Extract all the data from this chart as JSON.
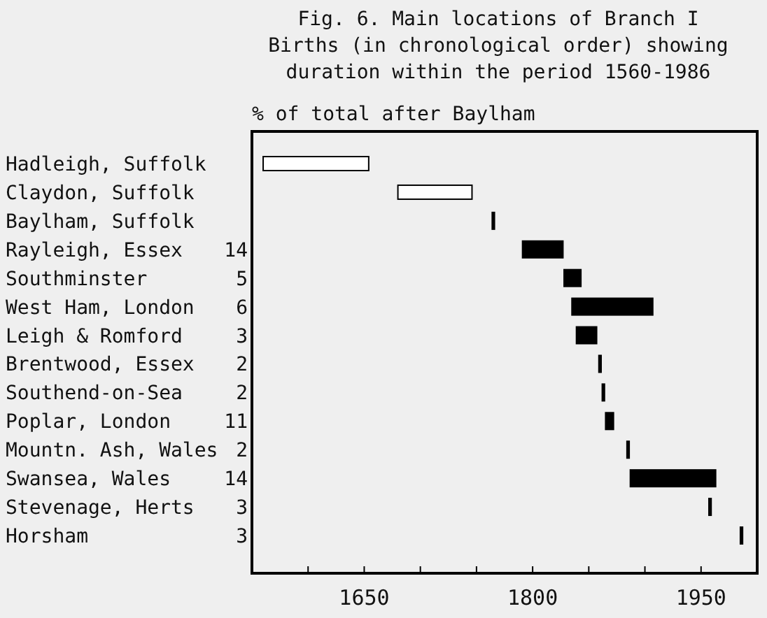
{
  "chart_data": {
    "type": "bar",
    "orientation": "horizontal",
    "title": "Fig. 6. Main locations of Branch I\nBirths (in chronological order) showing\nduration within the period 1560-1986",
    "categories": [
      "Hadleigh, Suffolk",
      "Claydon, Suffolk",
      "Baylham, Suffolk",
      "Rayleigh, Essex",
      "Southminster",
      "West Ham, London",
      "Leigh & Romford",
      "Brentwood, Essex",
      "Southend-on-Sea",
      "Poplar, London",
      "Mountn. Ash, Wales",
      "Swansea, Wales",
      "Stevenage, Herts",
      "Horsham"
    ],
    "base": [
      1560,
      1680,
      1764,
      1791,
      1828,
      1835,
      1839,
      1859,
      1862,
      1865,
      1884,
      1887,
      1957,
      1985
    ],
    "values": [
      94,
      66,
      2,
      36,
      15,
      72,
      18,
      2,
      2,
      7,
      2,
      76,
      2,
      2
    ],
    "colors": [
      "#ffffff",
      "#ffffff",
      "#000000",
      "#000000",
      "#000000",
      "#000000",
      "#000000",
      "#000000",
      "#000000",
      "#000000",
      "#000000",
      "#000000",
      "#000000",
      "#000000"
    ],
    "xlim": [
      1550,
      2000
    ],
    "xticks": [
      {
        "value": 1600,
        "label": null
      },
      1650,
      {
        "value": 1700,
        "label": null
      },
      {
        "value": 1750,
        "label": null
      },
      1800,
      {
        "value": 1850,
        "label": null
      },
      {
        "value": 1900,
        "label": null
      },
      1950
    ],
    "annotations": [
      "% of total after Baylham",
      "14",
      "5",
      "6",
      "3",
      "2",
      "2",
      "11",
      "2",
      "14",
      "3",
      "3"
    ]
  }
}
